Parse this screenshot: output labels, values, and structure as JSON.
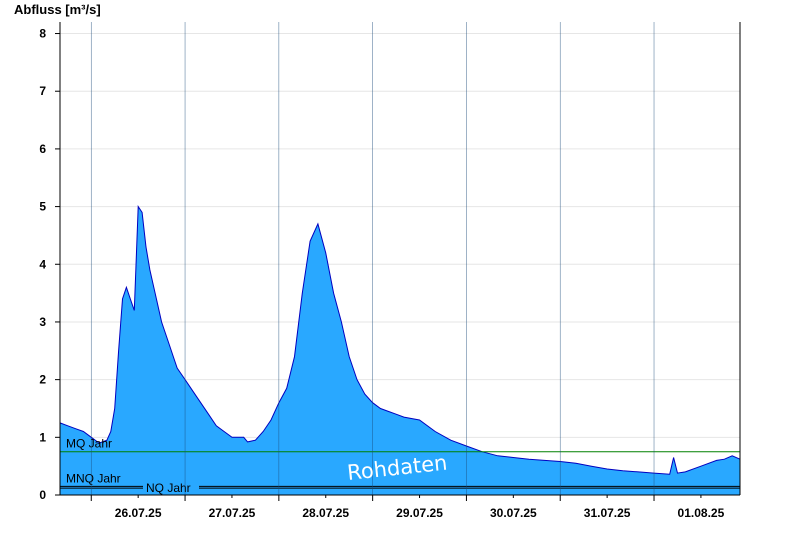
{
  "chart_data": {
    "type": "area",
    "ylabel": "Abfluss [m³/s]",
    "ylim": [
      0,
      8.2
    ],
    "yticks": [
      0,
      1,
      2,
      3,
      4,
      5,
      6,
      7,
      8
    ],
    "xlim": [
      "2025-07-25T16:00",
      "2025-08-01T22:00"
    ],
    "day_ticks": [
      "2025-07-26T00:00",
      "2025-07-27T00:00",
      "2025-07-28T00:00",
      "2025-07-29T00:00",
      "2025-07-30T00:00",
      "2025-07-31T00:00",
      "2025-08-01T00:00"
    ],
    "xtick_labels": [
      "26.07.25",
      "27.07.25",
      "28.07.25",
      "29.07.25",
      "30.07.25",
      "31.07.25",
      "01.08.25"
    ],
    "grid": "horizontal",
    "fill_color": "#29a8ff",
    "line_color": "#0000c0",
    "watermark": "Rohdaten",
    "reference_lines": [
      {
        "label": "MQ Jahr",
        "value": 0.75,
        "color": "#008000"
      },
      {
        "label": "MNQ Jahr",
        "value": 0.15,
        "color": "#000000"
      },
      {
        "label": "NQ Jahr",
        "value": 0.12,
        "color": "#000000"
      }
    ],
    "series": [
      {
        "x": [
          "2025-07-25T16:00",
          "2025-07-25T18:00",
          "2025-07-25T20:00",
          "2025-07-25T22:00",
          "2025-07-26T00:00",
          "2025-07-26T02:00",
          "2025-07-26T04:00",
          "2025-07-26T05:00",
          "2025-07-26T06:00",
          "2025-07-26T07:00",
          "2025-07-26T08:00",
          "2025-07-26T09:00",
          "2025-07-26T10:00",
          "2025-07-26T11:00",
          "2025-07-26T12:00",
          "2025-07-26T13:00",
          "2025-07-26T14:00",
          "2025-07-26T15:00",
          "2025-07-26T16:00",
          "2025-07-26T17:00",
          "2025-07-26T18:00",
          "2025-07-26T19:00",
          "2025-07-26T20:00",
          "2025-07-26T21:00",
          "2025-07-26T22:00",
          "2025-07-27T00:00",
          "2025-07-27T02:00",
          "2025-07-27T04:00",
          "2025-07-27T06:00",
          "2025-07-27T08:00",
          "2025-07-27T10:00",
          "2025-07-27T12:00",
          "2025-07-27T13:00",
          "2025-07-27T14:00",
          "2025-07-27T15:00",
          "2025-07-27T16:00",
          "2025-07-27T18:00",
          "2025-07-27T20:00",
          "2025-07-27T22:00",
          "2025-07-28T00:00",
          "2025-07-28T02:00",
          "2025-07-28T04:00",
          "2025-07-28T06:00",
          "2025-07-28T08:00",
          "2025-07-28T10:00",
          "2025-07-28T12:00",
          "2025-07-28T14:00",
          "2025-07-28T16:00",
          "2025-07-28T17:00",
          "2025-07-28T18:00",
          "2025-07-28T20:00",
          "2025-07-28T22:00",
          "2025-07-29T00:00",
          "2025-07-29T02:00",
          "2025-07-29T04:00",
          "2025-07-29T06:00",
          "2025-07-29T08:00",
          "2025-07-29T12:00",
          "2025-07-29T16:00",
          "2025-07-29T20:00",
          "2025-07-30T00:00",
          "2025-07-30T04:00",
          "2025-07-30T08:00",
          "2025-07-30T12:00",
          "2025-07-30T16:00",
          "2025-07-30T20:00",
          "2025-07-31T00:00",
          "2025-07-31T04:00",
          "2025-07-31T08:00",
          "2025-07-31T12:00",
          "2025-07-31T16:00",
          "2025-07-31T20:00",
          "2025-08-01T00:00",
          "2025-08-01T04:00",
          "2025-08-01T05:00",
          "2025-08-01T06:00",
          "2025-08-01T08:00",
          "2025-08-01T12:00",
          "2025-08-01T16:00",
          "2025-08-01T18:00",
          "2025-08-01T20:00",
          "2025-08-01T22:00"
        ],
        "y": [
          1.25,
          1.2,
          1.15,
          1.1,
          1.0,
          0.9,
          0.95,
          1.1,
          1.5,
          2.5,
          3.4,
          3.6,
          3.4,
          3.2,
          5.0,
          4.9,
          4.3,
          3.9,
          3.6,
          3.3,
          3.0,
          2.8,
          2.6,
          2.4,
          2.2,
          2.0,
          1.8,
          1.6,
          1.4,
          1.2,
          1.1,
          1.0,
          1.0,
          1.0,
          1.0,
          0.92,
          0.95,
          1.1,
          1.3,
          1.6,
          1.85,
          2.4,
          3.5,
          4.4,
          4.7,
          4.2,
          3.5,
          3.0,
          2.7,
          2.4,
          2.0,
          1.75,
          1.6,
          1.5,
          1.45,
          1.4,
          1.35,
          1.3,
          1.1,
          0.95,
          0.85,
          0.75,
          0.68,
          0.65,
          0.62,
          0.6,
          0.58,
          0.55,
          0.5,
          0.45,
          0.42,
          0.4,
          0.38,
          0.36,
          0.65,
          0.38,
          0.4,
          0.5,
          0.6,
          0.62,
          0.68,
          0.62
        ]
      }
    ]
  }
}
